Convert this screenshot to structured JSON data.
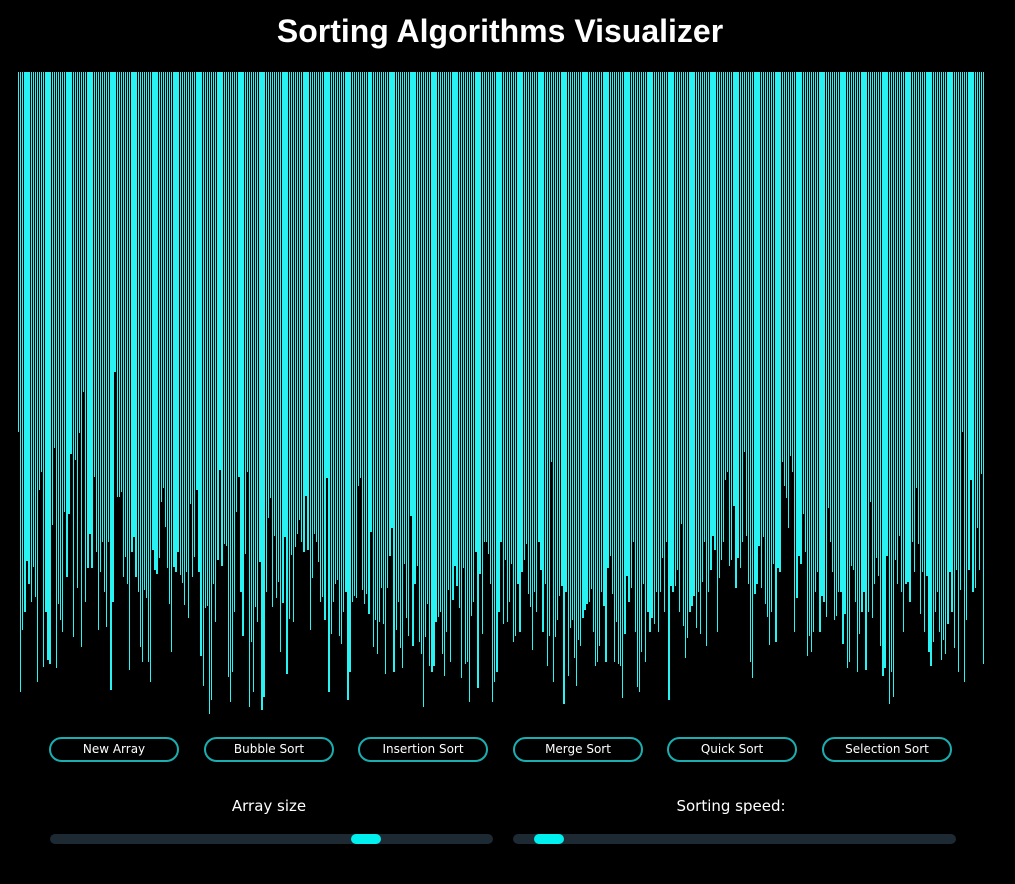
{
  "title": "Sorting Algorithms Visualizer",
  "colors": {
    "background": "#000000",
    "bar": "#28f2f2",
    "button_border": "#1aaeb0",
    "slider_track": "#1d2a33",
    "slider_thumb": "#00f0f0"
  },
  "array": {
    "max_value": 650,
    "values": [
      360,
      620,
      558,
      540,
      489,
      512,
      530,
      495,
      525,
      610,
      418,
      400,
      595,
      540,
      588,
      592,
      453,
      376,
      596,
      532,
      548,
      560,
      440,
      505,
      442,
      382,
      565,
      388,
      516,
      361,
      575,
      320,
      530,
      496,
      462,
      496,
      405,
      480,
      558,
      500,
      470,
      520,
      555,
      470,
      618,
      530,
      300,
      425,
      425,
      420,
      505,
      485,
      512,
      598,
      480,
      465,
      505,
      520,
      575,
      590,
      518,
      526,
      590,
      610,
      478,
      498,
      502,
      486,
      430,
      416,
      455,
      496,
      532,
      580,
      495,
      500,
      480,
      503,
      511,
      533,
      500,
      546,
      432,
      505,
      485,
      418,
      500,
      584,
      614,
      536,
      534,
      642,
      628,
      512,
      550,
      488,
      398,
      494,
      472,
      474,
      605,
      630,
      600,
      540,
      440,
      405,
      520,
      564,
      482,
      400,
      635,
      570,
      620,
      535,
      550,
      490,
      638,
      625,
      520,
      446,
      426,
      535,
      464,
      526,
      510,
      580,
      531,
      465,
      602,
      547,
      483,
      550,
      475,
      462,
      448,
      470,
      480,
      424,
      478,
      558,
      506,
      462,
      470,
      490,
      530,
      525,
      548,
      406,
      620,
      562,
      530,
      512,
      508,
      564,
      572,
      540,
      520,
      628,
      600,
      530,
      524,
      526,
      414,
      406,
      518,
      532,
      522,
      542,
      460,
      575,
      548,
      582,
      550,
      516,
      552,
      602,
      516,
      484,
      456,
      600,
      558,
      530,
      576,
      596,
      492,
      546,
      564,
      444,
      574,
      512,
      494,
      570,
      582,
      635,
      565,
      532,
      594,
      600,
      594,
      550,
      545,
      540,
      582,
      604,
      560,
      518,
      590,
      528,
      494,
      514,
      536,
      606,
      496,
      592,
      590,
      630,
      544,
      530,
      480,
      616,
      502,
      562,
      470,
      470,
      482,
      512,
      630,
      610,
      600,
      540,
      470,
      552,
      488,
      550,
      530,
      492,
      570,
      564,
      512,
      560,
      500,
      488,
      472,
      522,
      535,
      578,
      520,
      540,
      470,
      498,
      560,
      512,
      594,
      564,
      390,
      610,
      565,
      548,
      524,
      514,
      632,
      520,
      604,
      556,
      548,
      586,
      614,
      568,
      574,
      546,
      538,
      532,
      530,
      517,
      560,
      594,
      590,
      574,
      520,
      534,
      590,
      496,
      484,
      522,
      590,
      550,
      592,
      594,
      626,
      562,
      504,
      530,
      516,
      470,
      560,
      615,
      620,
      580,
      512,
      590,
      540,
      560,
      546,
      552,
      520,
      560,
      520,
      486,
      540,
      470,
      628,
      514,
      520,
      514,
      498,
      540,
      452,
      554,
      586,
      566,
      540,
      534,
      524,
      556,
      520,
      562,
      510,
      470,
      574,
      520,
      498,
      464,
      478,
      560,
      506,
      488,
      470,
      408,
      400,
      494,
      488,
      434,
      516,
      486,
      496,
      470,
      380,
      464,
      512,
      590,
      606,
      522,
      512,
      474,
      516,
      465,
      532,
      545,
      573,
      540,
      492,
      570,
      496,
      500,
      390,
      414,
      426,
      456,
      384,
      400,
      560,
      526,
      484,
      492,
      442,
      480,
      584,
      564,
      580,
      560,
      520,
      500,
      560,
      524,
      530,
      545,
      436,
      470,
      500,
      548,
      544,
      520,
      520,
      572,
      542,
      596,
      590,
      494,
      498,
      530,
      600,
      562,
      540,
      520,
      598,
      540,
      430,
      546,
      512,
      486,
      504,
      574,
      604,
      596,
      484,
      632,
      600,
      625,
      488,
      512,
      464,
      520,
      560,
      512,
      510,
      530,
      470,
      500,
      416,
      472,
      542,
      500,
      560,
      504,
      580,
      594,
      570,
      540,
      520,
      560,
      588,
      568,
      582,
      552,
      500,
      540,
      576,
      498,
      600,
      518,
      360,
      610,
      548,
      498,
      408,
      520,
      516,
      456,
      498,
      402,
      592
    ]
  },
  "buttons": [
    {
      "label": "New Array",
      "id": "new-array"
    },
    {
      "label": "Bubble Sort",
      "id": "bubble-sort"
    },
    {
      "label": "Insertion Sort",
      "id": "insertion-sort"
    },
    {
      "label": "Merge Sort",
      "id": "merge-sort"
    },
    {
      "label": "Quick Sort",
      "id": "quick-sort"
    },
    {
      "label": "Selection Sort",
      "id": "selection-sort"
    }
  ],
  "sliders": {
    "array_size": {
      "label": "Array size",
      "value_fraction": 0.73
    },
    "sorting_speed": {
      "label": "Sorting speed:",
      "value_fraction": 0.05
    }
  }
}
